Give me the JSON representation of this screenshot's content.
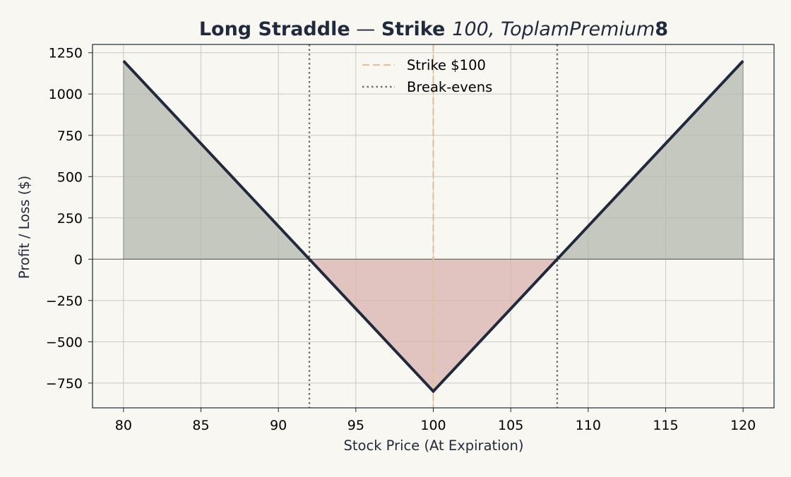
{
  "chart_data": {
    "type": "line",
    "title": "Long Straddle — Strike 100, Toplam Premium 8",
    "title_parts": {
      "bold_prefix": "Long Straddle",
      "dash": " — ",
      "bold_strike_word": "Strike",
      "math_segment": "100, ToplamPremium",
      "bold_suffix": "8"
    },
    "xlabel": "Stock Price (At Expiration)",
    "ylabel": "Profit / Loss ($)",
    "xlim": [
      78,
      122
    ],
    "ylim": [
      -900,
      1300
    ],
    "x_ticks": [
      80,
      85,
      90,
      95,
      100,
      105,
      110,
      115,
      120
    ],
    "y_ticks": [
      -750,
      -500,
      -250,
      0,
      250,
      500,
      750,
      1000,
      1250
    ],
    "grid": true,
    "series": [
      {
        "x": [
          80,
          92,
          100,
          108,
          120
        ],
        "y": [
          1200,
          0,
          -800,
          0,
          1200
        ],
        "color": "#1f2a3c"
      }
    ],
    "fills": {
      "profit_color": "#b4b8ac",
      "loss_color": "#d9b1ae"
    },
    "strike_line": {
      "x": 100,
      "label": "Strike $100",
      "color": "#e2c49a",
      "style": "dashed"
    },
    "breakeven_lines": {
      "x": [
        92,
        108
      ],
      "label": "Break-evens",
      "color": "#6e6e6e",
      "style": "dotted"
    },
    "zero_line": {
      "y": 0,
      "color": "#555555"
    },
    "legend_position": "top-center",
    "colors": {
      "background": "#f8f7f2",
      "plot_background": "#f8f7f2",
      "axes": "#1f2a3c",
      "grid": "#c9c9c4"
    }
  }
}
